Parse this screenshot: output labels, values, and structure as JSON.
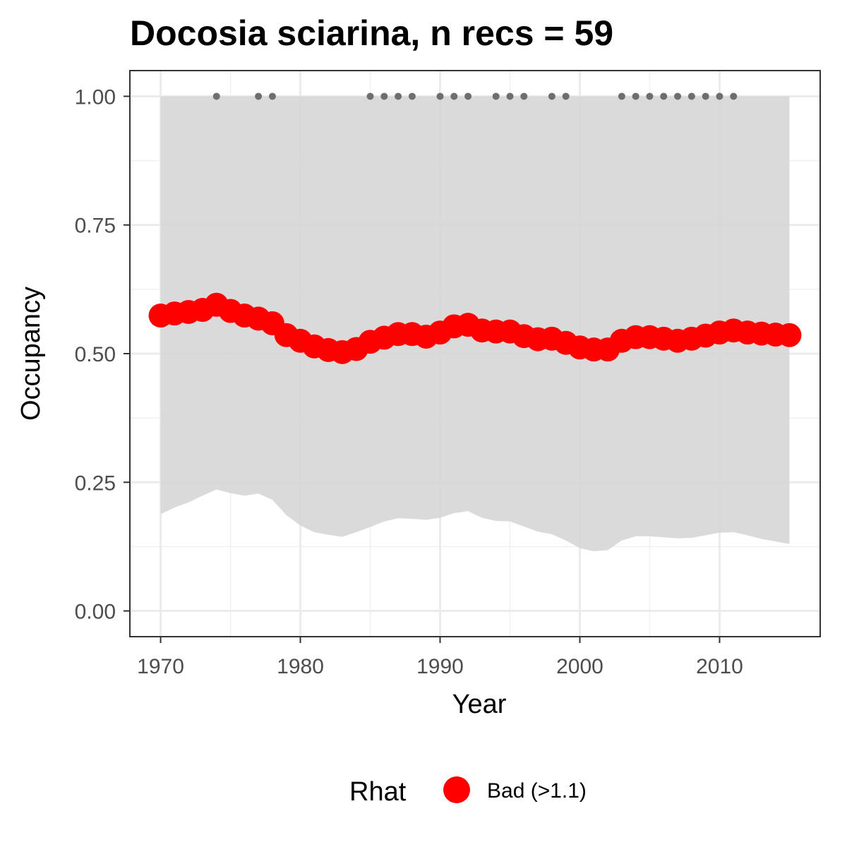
{
  "chart_data": {
    "type": "line",
    "title": "Docosia sciarina, n recs = 59",
    "xlabel": "Year",
    "ylabel": "Occupancy",
    "xlim": [
      1967.8,
      2017.2
    ],
    "ylim": [
      -0.05,
      1.05
    ],
    "x_ticks": [
      1970,
      1980,
      1990,
      2000,
      2010
    ],
    "x_tick_labels": [
      "1970",
      "1980",
      "1990",
      "2000",
      "2010"
    ],
    "y_ticks": [
      0,
      0.25,
      0.5,
      0.75,
      1
    ],
    "y_tick_labels": [
      "0.00",
      "0.25",
      "0.50",
      "0.75",
      "1.00"
    ],
    "grid": true,
    "legend": {
      "title": "Rhat",
      "position": "bottom",
      "entries": [
        {
          "label": "Bad (>1.1)",
          "color": "#ff0000"
        }
      ]
    },
    "series": [
      {
        "name": "Bad (>1.1)",
        "color": "#ff0000",
        "x": [
          1970,
          1971,
          1972,
          1973,
          1974,
          1975,
          1976,
          1977,
          1978,
          1979,
          1980,
          1981,
          1982,
          1983,
          1984,
          1985,
          1986,
          1987,
          1988,
          1989,
          1990,
          1991,
          1992,
          1993,
          1994,
          1995,
          1996,
          1997,
          1998,
          1999,
          2000,
          2001,
          2002,
          2003,
          2004,
          2005,
          2006,
          2007,
          2008,
          2009,
          2010,
          2011,
          2012,
          2013,
          2014,
          2015
        ],
        "values": [
          0.574,
          0.578,
          0.581,
          0.585,
          0.595,
          0.583,
          0.574,
          0.568,
          0.559,
          0.536,
          0.525,
          0.514,
          0.507,
          0.503,
          0.509,
          0.523,
          0.531,
          0.538,
          0.538,
          0.533,
          0.541,
          0.553,
          0.556,
          0.545,
          0.543,
          0.543,
          0.534,
          0.528,
          0.529,
          0.521,
          0.512,
          0.508,
          0.508,
          0.525,
          0.532,
          0.532,
          0.529,
          0.525,
          0.529,
          0.535,
          0.541,
          0.545,
          0.541,
          0.539,
          0.537,
          0.536
        ]
      }
    ],
    "ribbon": {
      "color": "#d6d6d6",
      "x": [
        1970,
        1971,
        1972,
        1973,
        1974,
        1975,
        1976,
        1977,
        1978,
        1979,
        1980,
        1981,
        1982,
        1983,
        1984,
        1985,
        1986,
        1987,
        1988,
        1989,
        1990,
        1991,
        1992,
        1993,
        1994,
        1995,
        1996,
        1997,
        1998,
        1999,
        2000,
        2001,
        2002,
        2003,
        2004,
        2005,
        2006,
        2007,
        2008,
        2009,
        2010,
        2011,
        2012,
        2013,
        2014,
        2015
      ],
      "lower": [
        0.188,
        0.201,
        0.211,
        0.224,
        0.236,
        0.229,
        0.224,
        0.228,
        0.216,
        0.186,
        0.166,
        0.153,
        0.148,
        0.144,
        0.153,
        0.163,
        0.174,
        0.18,
        0.179,
        0.177,
        0.181,
        0.19,
        0.194,
        0.181,
        0.175,
        0.174,
        0.164,
        0.154,
        0.149,
        0.137,
        0.122,
        0.116,
        0.118,
        0.137,
        0.145,
        0.145,
        0.143,
        0.141,
        0.142,
        0.147,
        0.152,
        0.153,
        0.147,
        0.14,
        0.135,
        0.13
      ],
      "upper": [
        1,
        1,
        1,
        1,
        1,
        1,
        1,
        1,
        1,
        1,
        1,
        1,
        1,
        1,
        1,
        1,
        1,
        1,
        1,
        1,
        1,
        1,
        1,
        1,
        1,
        1,
        1,
        1,
        1,
        1,
        1,
        1,
        1,
        1,
        1,
        1,
        1,
        1,
        1,
        1,
        1,
        1,
        1,
        1,
        1,
        1
      ]
    },
    "record_years": {
      "color": "#6e6e6e",
      "y": 1,
      "x": [
        1974,
        1977,
        1978,
        1985,
        1986,
        1987,
        1988,
        1990,
        1991,
        1992,
        1994,
        1995,
        1996,
        1998,
        1999,
        2003,
        2004,
        2005,
        2006,
        2007,
        2008,
        2009,
        2010,
        2011
      ]
    }
  }
}
